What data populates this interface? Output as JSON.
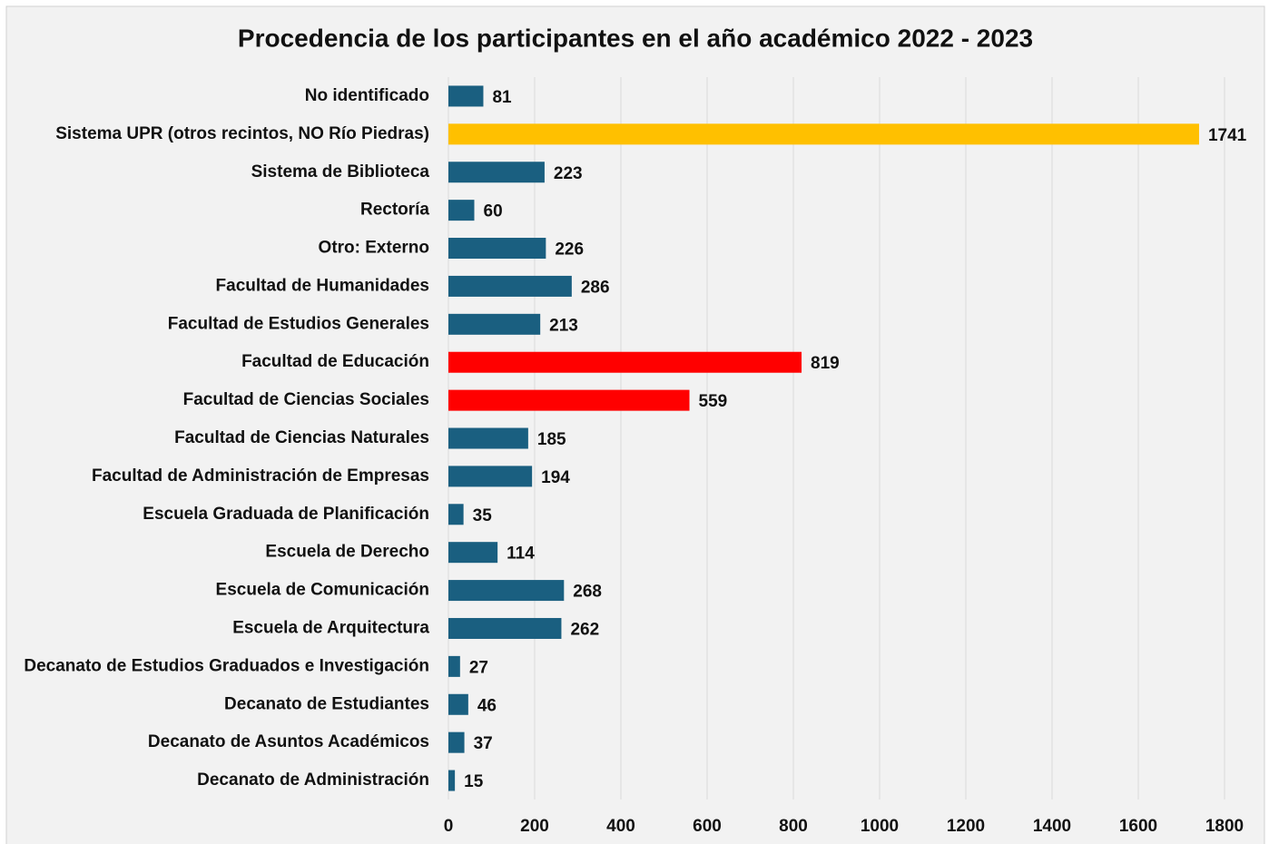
{
  "chart_data": {
    "type": "barh",
    "title": "Procedencia de los participantes en el año académico 2022 - 2023",
    "categories": [
      "No identificado",
      "Sistema UPR (otros recintos, NO Río Piedras)",
      "Sistema de Biblioteca",
      "Rectoría",
      "Otro: Externo",
      "Facultad de Humanidades",
      "Facultad de Estudios Generales",
      "Facultad de Educación",
      "Facultad de Ciencias Sociales",
      "Facultad de Ciencias Naturales",
      "Facultad de Administración de Empresas",
      "Escuela Graduada de Planificación",
      "Escuela de Derecho",
      "Escuela de Comunicación",
      "Escuela de Arquitectura",
      "Decanato de Estudios Graduados e Investigación",
      "Decanato de Estudiantes",
      "Decanato de Asuntos Académicos",
      "Decanato de Administración"
    ],
    "values": [
      81,
      1741,
      223,
      60,
      226,
      286,
      213,
      819,
      559,
      185,
      194,
      35,
      114,
      268,
      262,
      27,
      46,
      37,
      15
    ],
    "colors": [
      "#1a5f80",
      "#ffc000",
      "#1a5f80",
      "#1a5f80",
      "#1a5f80",
      "#1a5f80",
      "#1a5f80",
      "#ff0000",
      "#ff0000",
      "#1a5f80",
      "#1a5f80",
      "#1a5f80",
      "#1a5f80",
      "#1a5f80",
      "#1a5f80",
      "#1a5f80",
      "#1a5f80",
      "#1a5f80",
      "#1a5f80"
    ],
    "xlim": [
      0,
      1800
    ],
    "xticks": [
      0,
      200,
      400,
      600,
      800,
      1000,
      1200,
      1400,
      1600,
      1800
    ],
    "grid": true
  }
}
